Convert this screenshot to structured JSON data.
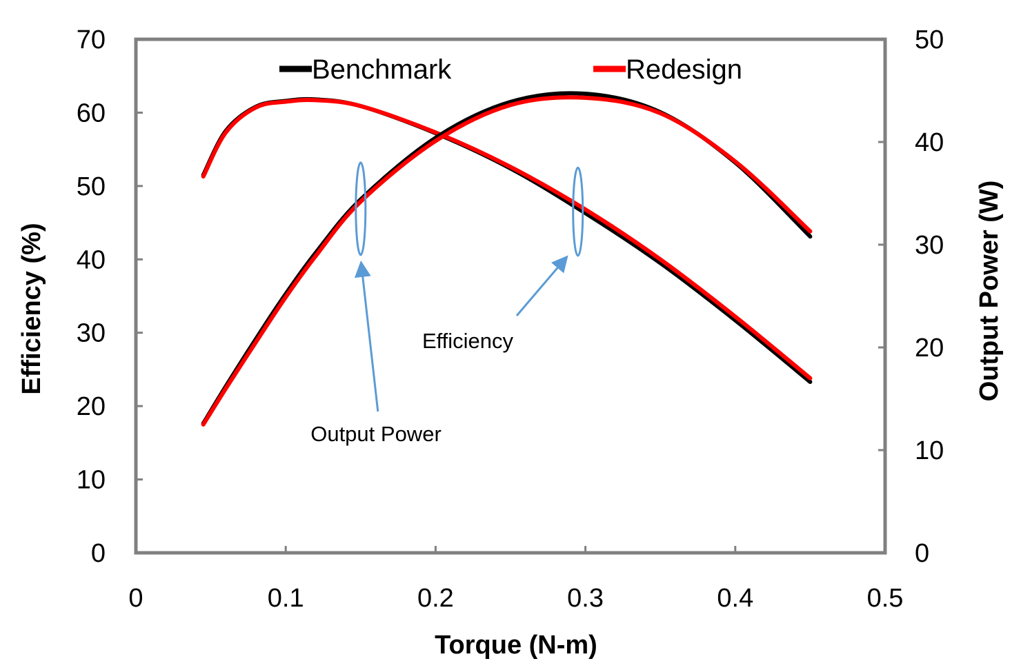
{
  "chart_data": {
    "type": "line",
    "xlabel": "Torque (N-m)",
    "ylabel": "Efficiency (%)",
    "y2label": "Output Power (W)",
    "xlim": [
      0,
      0.5
    ],
    "ylim": [
      0,
      70
    ],
    "y2lim": [
      0,
      50
    ],
    "x_ticks": [
      "0",
      "0.1",
      "0.2",
      "0.3",
      "0.4",
      "0.5"
    ],
    "y_ticks": [
      "0",
      "10",
      "20",
      "30",
      "40",
      "50",
      "60",
      "70"
    ],
    "y2_ticks": [
      "0",
      "10",
      "20",
      "30",
      "40",
      "50"
    ],
    "grid": false,
    "legend_position": "top",
    "x": [
      0.045,
      0.06,
      0.08,
      0.1,
      0.12,
      0.15,
      0.2,
      0.25,
      0.3,
      0.35,
      0.4,
      0.45
    ],
    "series": [
      {
        "name": "Benchmark",
        "axis": "left",
        "color": "#000000",
        "values": [
          51.5,
          57.5,
          60.8,
          61.6,
          61.8,
          60.9,
          57.2,
          52.4,
          46.3,
          39.5,
          31.7,
          23.3
        ]
      },
      {
        "name": "Redesign",
        "axis": "left",
        "color": "#ff0000",
        "values": [
          51.3,
          57.3,
          60.7,
          61.5,
          61.7,
          60.9,
          57.3,
          52.6,
          46.8,
          40.0,
          32.2,
          23.8
        ]
      },
      {
        "name": "Benchmark",
        "axis": "right",
        "color": "#000000",
        "values": [
          12.6,
          16.2,
          20.8,
          25.2,
          29.2,
          34.4,
          40.4,
          43.9,
          44.7,
          42.9,
          38.0,
          30.8
        ]
      },
      {
        "name": "Redesign",
        "axis": "right",
        "color": "#ff0000",
        "values": [
          12.5,
          16.0,
          20.5,
          24.9,
          28.9,
          34.2,
          40.1,
          43.6,
          44.3,
          42.8,
          38.1,
          31.3
        ]
      }
    ],
    "annotations": [
      {
        "text": "Output Power",
        "target_x": 0.15
      },
      {
        "text": "Efficiency",
        "target_x": 0.295
      }
    ],
    "annotation_color": "#5b9bd5"
  }
}
